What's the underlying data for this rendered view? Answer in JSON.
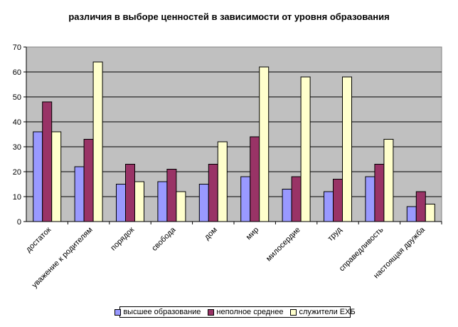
{
  "chart_data": {
    "type": "bar",
    "title": "различия в выборе ценностей в зависимости от уровня образования",
    "categories": [
      "достаток",
      "уважение к родителям",
      "порядок",
      "свобода",
      "дом",
      "мир",
      "милосердие",
      "труд",
      "справедливость",
      "настоящая дружба"
    ],
    "series": [
      {
        "name": "высшее образование",
        "color": "#9999ff",
        "values": [
          36,
          22,
          15,
          16,
          15,
          18,
          13,
          12,
          18,
          6
        ]
      },
      {
        "name": "неполное среднее",
        "color": "#993366",
        "values": [
          48,
          33,
          23,
          21,
          23,
          34,
          18,
          17,
          23,
          12
        ]
      },
      {
        "name": "служители ЕХБ",
        "color": "#ffffcc",
        "values": [
          36,
          64,
          16,
          12,
          32,
          62,
          58,
          58,
          33,
          7
        ]
      }
    ],
    "ylim": [
      0,
      70
    ],
    "yticks": [
      0,
      10,
      20,
      30,
      40,
      50,
      60,
      70
    ],
    "plot_background": "#c0c0c0",
    "grid": true,
    "legend_position": "bottom"
  }
}
